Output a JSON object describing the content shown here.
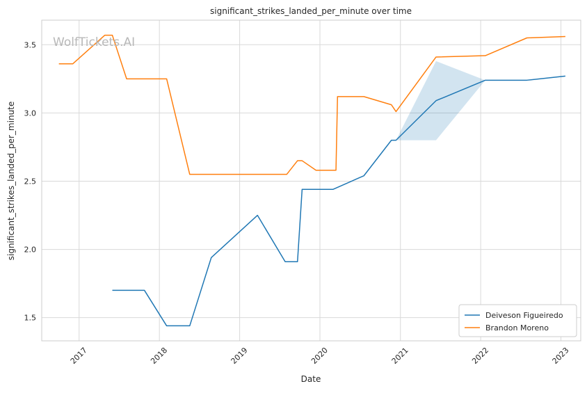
{
  "chart_data": {
    "type": "line",
    "title": "significant_strikes_landed_per_minute over time",
    "xlabel": "Date",
    "ylabel": "significant_strikes_landed_per_minute",
    "watermark": "WolfTickets.AI",
    "x_ticks": [
      "2017",
      "2018",
      "2019",
      "2020",
      "2021",
      "2022",
      "2023"
    ],
    "y_ticks": [
      "1.5",
      "2.0",
      "2.5",
      "3.0",
      "3.5"
    ],
    "ylim": [
      1.33,
      3.68
    ],
    "xlim": [
      "2016-07-15",
      "2023-04-01"
    ],
    "grid": true,
    "legend_position": "bottom-right",
    "series": [
      {
        "name": "Deiveson Figueiredo",
        "color": "#1f77b4",
        "points": [
          {
            "date": "2017-06-01",
            "value": 1.7
          },
          {
            "date": "2017-10-25",
            "value": 1.7
          },
          {
            "date": "2018-02-03",
            "value": 1.44
          },
          {
            "date": "2018-05-19",
            "value": 1.44
          },
          {
            "date": "2018-08-25",
            "value": 1.94
          },
          {
            "date": "2019-03-23",
            "value": 2.25
          },
          {
            "date": "2019-07-27",
            "value": 1.91
          },
          {
            "date": "2019-09-21",
            "value": 1.91
          },
          {
            "date": "2019-10-12",
            "value": 2.44
          },
          {
            "date": "2019-12-14",
            "value": 2.44
          },
          {
            "date": "2020-02-29",
            "value": 2.44
          },
          {
            "date": "2020-07-19",
            "value": 2.54
          },
          {
            "date": "2020-11-21",
            "value": 2.8
          },
          {
            "date": "2020-12-12",
            "value": 2.8
          },
          {
            "date": "2021-06-12",
            "value": 3.09
          },
          {
            "date": "2022-01-22",
            "value": 3.24
          },
          {
            "date": "2022-07-30",
            "value": 3.24
          },
          {
            "date": "2023-01-21",
            "value": 3.27
          }
        ],
        "confidence_band": [
          {
            "date": "2020-12-12",
            "low": 2.8,
            "high": 2.8
          },
          {
            "date": "2021-06-12",
            "low": 2.8,
            "high": 3.38
          },
          {
            "date": "2022-01-22",
            "low": 3.24,
            "high": 3.24
          }
        ]
      },
      {
        "name": "Brandon Moreno",
        "color": "#ff7f0e",
        "points": [
          {
            "date": "2016-10-01",
            "value": 3.36
          },
          {
            "date": "2016-12-03",
            "value": 3.36
          },
          {
            "date": "2017-04-28",
            "value": 3.57
          },
          {
            "date": "2017-06-01",
            "value": 3.57
          },
          {
            "date": "2017-08-05",
            "value": 3.25
          },
          {
            "date": "2018-02-03",
            "value": 3.25
          },
          {
            "date": "2018-05-19",
            "value": 2.55
          },
          {
            "date": "2019-08-03",
            "value": 2.55
          },
          {
            "date": "2019-09-21",
            "value": 2.65
          },
          {
            "date": "2019-10-12",
            "value": 2.65
          },
          {
            "date": "2019-12-14",
            "value": 2.58
          },
          {
            "date": "2020-03-14",
            "value": 2.58
          },
          {
            "date": "2020-03-21",
            "value": 3.12
          },
          {
            "date": "2020-07-19",
            "value": 3.12
          },
          {
            "date": "2020-11-21",
            "value": 3.06
          },
          {
            "date": "2020-12-12",
            "value": 3.01
          },
          {
            "date": "2021-06-12",
            "value": 3.41
          },
          {
            "date": "2022-01-22",
            "value": 3.42
          },
          {
            "date": "2022-07-30",
            "value": 3.55
          },
          {
            "date": "2023-01-21",
            "value": 3.56
          }
        ]
      }
    ]
  }
}
